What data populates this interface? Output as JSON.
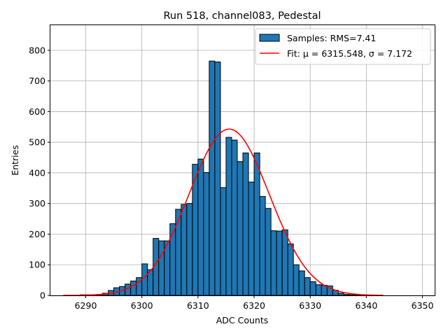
{
  "chart_data": {
    "type": "bar",
    "title": "Run 518, channel083, Pedestal",
    "xlabel": "ADC Counts",
    "ylabel": "Entries",
    "xlim": [
      6283.7,
      6352.3
    ],
    "ylim": [
      0,
      882
    ],
    "grid": true,
    "legend_position": "top-right",
    "x_ticks": [
      6290,
      6300,
      6310,
      6320,
      6330,
      6340,
      6350
    ],
    "y_ticks": [
      0,
      100,
      200,
      300,
      400,
      500,
      600,
      700,
      800
    ],
    "colors": {
      "bars": "#1f77b4",
      "bar_edge": "#000000",
      "fit": "#ff0000",
      "grid": "#b0b0b0"
    },
    "series": [
      {
        "name": "Samples: RMS=7.41",
        "type": "histogram",
        "bin_width": 1,
        "bins": [
          {
            "x": 6289,
            "count": 2
          },
          {
            "x": 6290,
            "count": 2
          },
          {
            "x": 6291,
            "count": 2
          },
          {
            "x": 6292,
            "count": 3
          },
          {
            "x": 6293,
            "count": 7
          },
          {
            "x": 6294,
            "count": 16
          },
          {
            "x": 6295,
            "count": 25
          },
          {
            "x": 6296,
            "count": 29
          },
          {
            "x": 6297,
            "count": 37
          },
          {
            "x": 6298,
            "count": 47
          },
          {
            "x": 6299,
            "count": 58
          },
          {
            "x": 6300,
            "count": 103
          },
          {
            "x": 6301,
            "count": 84
          },
          {
            "x": 6302,
            "count": 186
          },
          {
            "x": 6303,
            "count": 178
          },
          {
            "x": 6304,
            "count": 178
          },
          {
            "x": 6305,
            "count": 234
          },
          {
            "x": 6306,
            "count": 281
          },
          {
            "x": 6307,
            "count": 297
          },
          {
            "x": 6308,
            "count": 300
          },
          {
            "x": 6309,
            "count": 428
          },
          {
            "x": 6310,
            "count": 445
          },
          {
            "x": 6311,
            "count": 401
          },
          {
            "x": 6312,
            "count": 765
          },
          {
            "x": 6313,
            "count": 762
          },
          {
            "x": 6314,
            "count": 352
          },
          {
            "x": 6315,
            "count": 516
          },
          {
            "x": 6316,
            "count": 507
          },
          {
            "x": 6317,
            "count": 437
          },
          {
            "x": 6318,
            "count": 465
          },
          {
            "x": 6319,
            "count": 370
          },
          {
            "x": 6320,
            "count": 465
          },
          {
            "x": 6321,
            "count": 323
          },
          {
            "x": 6322,
            "count": 284
          },
          {
            "x": 6323,
            "count": 211
          },
          {
            "x": 6324,
            "count": 210
          },
          {
            "x": 6325,
            "count": 214
          },
          {
            "x": 6326,
            "count": 168
          },
          {
            "x": 6327,
            "count": 100
          },
          {
            "x": 6328,
            "count": 80
          },
          {
            "x": 6329,
            "count": 58
          },
          {
            "x": 6330,
            "count": 45
          },
          {
            "x": 6331,
            "count": 35
          },
          {
            "x": 6332,
            "count": 33
          },
          {
            "x": 6333,
            "count": 31
          },
          {
            "x": 6334,
            "count": 17
          },
          {
            "x": 6335,
            "count": 7
          },
          {
            "x": 6336,
            "count": 3
          },
          {
            "x": 6337,
            "count": 2
          },
          {
            "x": 6338,
            "count": 2
          }
        ]
      },
      {
        "name": "Fit: μ = 6315.548, σ = 7.172",
        "type": "line",
        "gaussian": {
          "mu": 6315.548,
          "sigma": 7.172,
          "amplitude": 543
        },
        "x_range": [
          6286,
          6343
        ]
      }
    ]
  }
}
